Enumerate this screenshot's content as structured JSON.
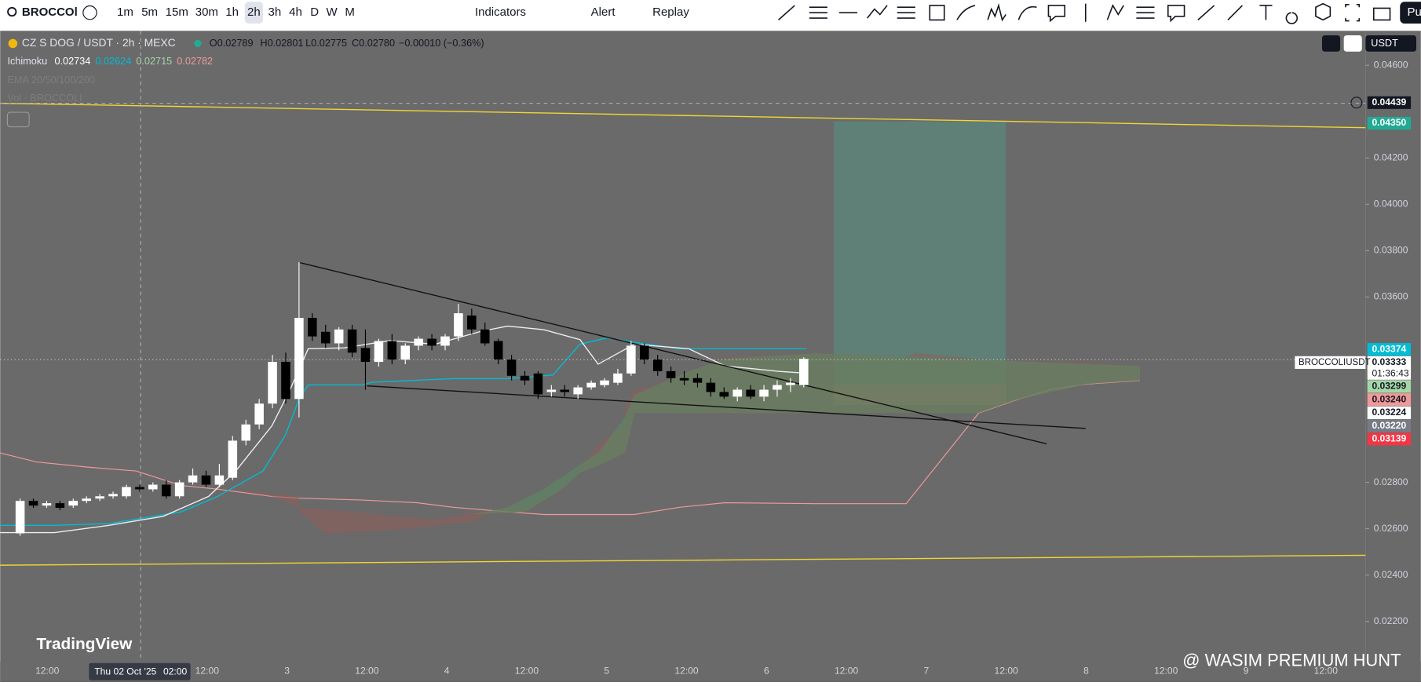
{
  "toolbar": {
    "symbol": "BROCCOl",
    "timeframes": [
      "1m",
      "5m",
      "15m",
      "30m",
      "1h",
      "2h",
      "3h",
      "4h",
      "D",
      "W",
      "M"
    ],
    "indicators": "Indicators",
    "alert": "Alert",
    "replay": "Replay",
    "publish": "Pu"
  },
  "legend": {
    "pair": "CZ S DOG / USDT · 2h · MEXC",
    "open": "O0.02789",
    "high": "H0.02801",
    "low": "L0.02775",
    "close": "C0.02780",
    "change": "−0.00010 (−0.36%)",
    "ichimoku": "Ichimoku",
    "ichimoku_values": [
      "0.02734",
      "0.02624",
      "0.02715",
      "0.02782"
    ],
    "ema": "EMA 20/50/100/200",
    "vol": "Vol · BROCCOLI"
  },
  "currency": "USDT",
  "symbol_label": "BROCCOLIUSDT",
  "countdown": "01:36:43",
  "watermark": "TradingView",
  "credit": "@ WASIM PREMIUM HUNT",
  "chart_data": {
    "type": "candlestick",
    "ylim": [
      0.02028,
      0.04749
    ],
    "yticks": [
      {
        "value": 0.046,
        "label": "0.04600"
      },
      {
        "value": 0.042,
        "label": "0.04200"
      },
      {
        "value": 0.04,
        "label": "0.04000"
      },
      {
        "value": 0.038,
        "label": "0.03800"
      },
      {
        "value": 0.036,
        "label": "0.03600"
      },
      {
        "value": 0.028,
        "label": "0.02800"
      },
      {
        "value": 0.026,
        "label": "0.02600"
      },
      {
        "value": 0.024,
        "label": "0.02400"
      },
      {
        "value": 0.022,
        "label": "0.02200"
      }
    ],
    "time_labels": [
      "12:00",
      null,
      "12:00",
      "3",
      "12:00",
      "4",
      "12:00",
      "5",
      "12:00",
      "6",
      "12:00",
      "7",
      "12:00",
      "8",
      "12:00",
      "9",
      "12:00"
    ],
    "crosshair_time": "Thu 02 Oct '25",
    "crosshair_hour": "02:00",
    "crosshair_price": {
      "value": 0.04439,
      "label": "0.04439"
    },
    "open": [
      0.0258,
      0.0272,
      0.027,
      0.0271,
      0.027,
      0.0272,
      0.0273,
      0.0274,
      0.0274,
      0.0278,
      0.0277,
      0.0279,
      0.0274,
      0.028,
      0.0283,
      0.0279,
      0.0282,
      0.0298,
      0.0305,
      0.0314,
      0.0332,
      0.0316,
      0.0351,
      0.0345,
      0.034,
      0.0346,
      0.0338,
      0.0332,
      0.0341,
      0.0333,
      0.0339,
      0.0342,
      0.0339,
      0.0343,
      0.0352,
      0.0346,
      0.0341,
      0.0333,
      0.0326,
      0.0327,
      0.0319,
      0.032,
      0.0318,
      0.0321,
      0.0322,
      0.0323,
      0.0327,
      0.0339,
      0.0333,
      0.0328,
      0.0325,
      0.0325,
      0.0323,
      0.0319,
      0.0317,
      0.032,
      0.0317,
      0.032,
      0.0322,
      0.0322
    ],
    "high": [
      0.0273,
      0.0273,
      0.0272,
      0.0272,
      0.0273,
      0.0274,
      0.0275,
      0.0276,
      0.0279,
      0.0279,
      0.028,
      0.0281,
      0.0281,
      0.0286,
      0.0285,
      0.0288,
      0.03,
      0.0307,
      0.0316,
      0.0335,
      0.0336,
      0.0375,
      0.0353,
      0.0348,
      0.0347,
      0.0348,
      0.0346,
      0.0342,
      0.0344,
      0.034,
      0.0343,
      0.0344,
      0.0344,
      0.0357,
      0.0355,
      0.0349,
      0.0342,
      0.0335,
      0.0328,
      0.0328,
      0.0322,
      0.0322,
      0.0322,
      0.0324,
      0.0325,
      0.0329,
      0.0341,
      0.034,
      0.0335,
      0.033,
      0.0328,
      0.0327,
      0.0325,
      0.0321,
      0.0321,
      0.0322,
      0.0322,
      0.0324,
      0.0325,
      0.0334
    ],
    "low": [
      0.0257,
      0.0269,
      0.0269,
      0.0268,
      0.0269,
      0.0271,
      0.0272,
      0.0273,
      0.0273,
      0.0276,
      0.0276,
      0.0273,
      0.0273,
      0.0279,
      0.0278,
      0.0278,
      0.0281,
      0.0296,
      0.0303,
      0.0312,
      0.0314,
      0.0308,
      0.0341,
      0.0338,
      0.0337,
      0.0334,
      0.032,
      0.033,
      0.0331,
      0.0331,
      0.0337,
      0.0337,
      0.0337,
      0.0341,
      0.0344,
      0.0339,
      0.0331,
      0.0324,
      0.0322,
      0.0316,
      0.0317,
      0.0317,
      0.0316,
      0.032,
      0.0321,
      0.0322,
      0.0326,
      0.0331,
      0.0326,
      0.0323,
      0.0322,
      0.0321,
      0.0317,
      0.0316,
      0.0315,
      0.0316,
      0.0315,
      0.0317,
      0.0319,
      0.0321
    ],
    "close": [
      0.0272,
      0.027,
      0.0271,
      0.0269,
      0.0272,
      0.0273,
      0.0274,
      0.0275,
      0.0278,
      0.0277,
      0.0279,
      0.0274,
      0.028,
      0.0283,
      0.0279,
      0.0283,
      0.0298,
      0.0305,
      0.0314,
      0.0332,
      0.0316,
      0.0351,
      0.0343,
      0.034,
      0.0346,
      0.0336,
      0.0332,
      0.0341,
      0.0333,
      0.0339,
      0.0342,
      0.0339,
      0.0343,
      0.0353,
      0.0346,
      0.034,
      0.0333,
      0.0326,
      0.0324,
      0.0318,
      0.032,
      0.0319,
      0.0321,
      0.0323,
      0.0324,
      0.0327,
      0.0339,
      0.0333,
      0.0328,
      0.0325,
      0.0324,
      0.0323,
      0.0319,
      0.0317,
      0.032,
      0.0317,
      0.032,
      0.0322,
      0.0323,
      0.03333
    ],
    "price_badges": [
      {
        "value": 0.0435,
        "label": "0.04350",
        "color": "#22ab94"
      },
      {
        "value": 0.03374,
        "label": "0.03374",
        "color": "#00bcd4"
      },
      {
        "value": 0.03333,
        "label": "0.03333",
        "color": "#ffffff"
      },
      {
        "value": 0.03299,
        "label": "0.03299",
        "color": "#a5d6a7"
      },
      {
        "value": 0.0324,
        "label": "0.03240",
        "color": "#ef9a9a"
      },
      {
        "value": 0.03224,
        "label": "0.03224",
        "color": "#ffffff"
      },
      {
        "value": 0.0322,
        "label": "0.03220",
        "color": "#787b86"
      },
      {
        "value": 0.03139,
        "label": "0.03139",
        "color": "#f23645"
      }
    ]
  }
}
